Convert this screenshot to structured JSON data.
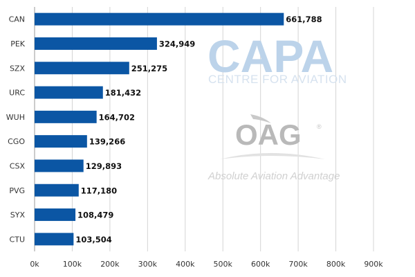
{
  "chart_data": {
    "type": "bar",
    "orientation": "horizontal",
    "categories": [
      "CAN",
      "PEK",
      "SZX",
      "URC",
      "WUH",
      "CGO",
      "CSX",
      "PVG",
      "SYX",
      "CTU"
    ],
    "values": [
      661788,
      324949,
      251275,
      181432,
      164702,
      139266,
      129893,
      117180,
      108479,
      103504
    ],
    "value_labels": [
      "661,788",
      "324,949",
      "251,275",
      "181,432",
      "164,702",
      "139,266",
      "129,893",
      "117,180",
      "108,479",
      "103,504"
    ],
    "x_ticks": [
      "0k",
      "100k",
      "200k",
      "300k",
      "400k",
      "500k",
      "600k",
      "700k",
      "800k",
      "900k"
    ],
    "xlim": [
      0,
      900000
    ],
    "grid": true,
    "bar_color": "#0b56a4",
    "title": "",
    "xlabel": "",
    "ylabel": ""
  },
  "watermarks": {
    "capa": {
      "text": "CAPA",
      "subtitle": "CENTRE FOR AVIATION"
    },
    "oag": {
      "text": "OAG",
      "registered": "®",
      "tagline": "Absolute Aviation Advantage"
    }
  }
}
